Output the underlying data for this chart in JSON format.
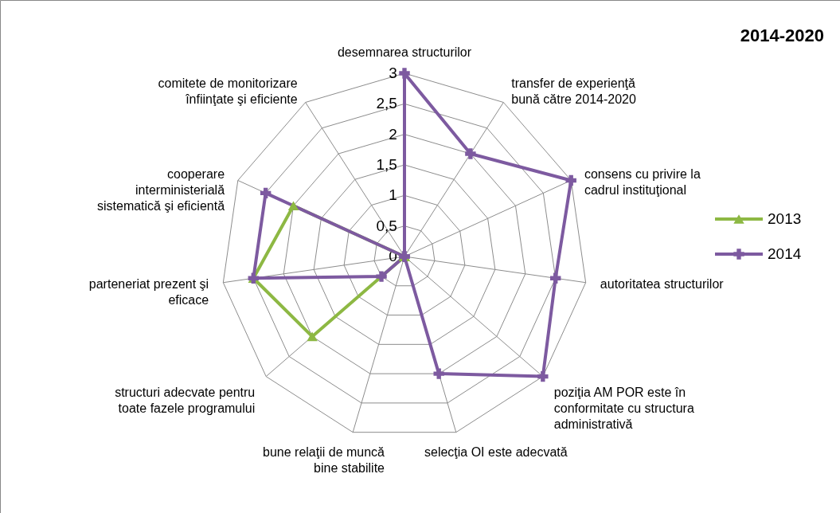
{
  "chart_data": {
    "type": "radar",
    "title": "2014-2020",
    "categories": [
      "desemnarea structurilor",
      "transfer de experienţă\nbună către 2014-2020",
      "consens cu privire la\ncadrul instituţional",
      "autoritatea structurilor",
      "poziţia AM POR este în\nconformitate cu structura\nadministrativă",
      "selecţia OI este adecvată",
      "bune relaţii de muncă\nbine stabilite",
      "structuri adecvate pentru\ntoate fazele programului",
      "parteneriat prezent şi\neficace",
      "cooperare\ninterministerială\nsistematică şi eficientă",
      "comitete de monitorizare\nînfiinţate şi eficiente"
    ],
    "series": [
      {
        "name": "2013",
        "color": "#8db843",
        "marker": "triangle",
        "values": [
          0,
          0,
          0,
          0,
          0,
          0,
          0,
          2,
          2.5,
          2,
          0
        ]
      },
      {
        "name": "2014",
        "color": "#7d5aa0",
        "marker": "cross",
        "values": [
          3,
          2,
          3,
          2.5,
          3,
          2,
          0,
          0.5,
          2.5,
          2.5,
          0
        ]
      }
    ],
    "ylim": [
      0,
      3
    ],
    "yticks": [
      0,
      {
        "value": 0.5,
        "label": "0,5"
      },
      1,
      {
        "value": 1.5,
        "label": "1,5"
      },
      2,
      {
        "value": 2.5,
        "label": "2,5"
      },
      3
    ],
    "grid": true,
    "legend": "right"
  }
}
